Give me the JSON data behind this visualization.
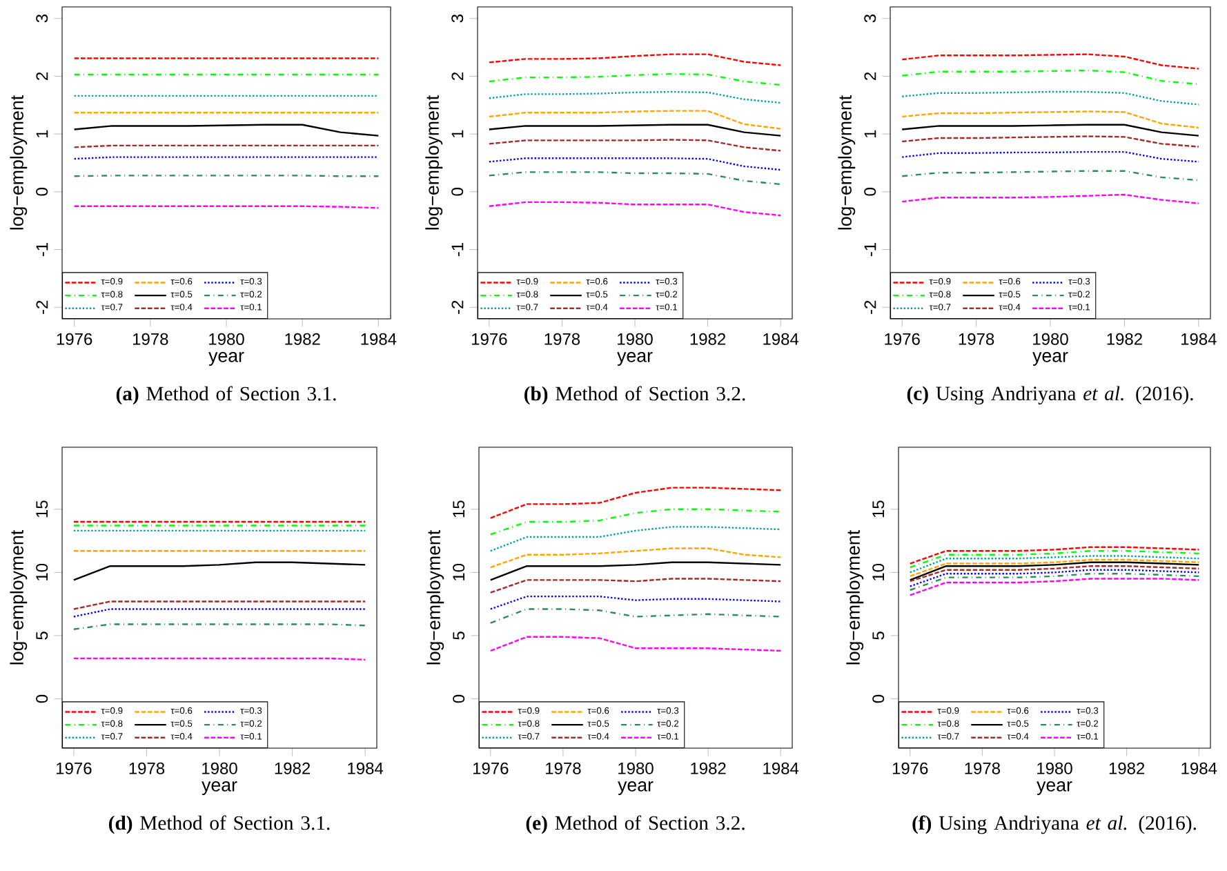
{
  "chart_data": [
    {
      "type": "line",
      "title": "**(a)** Method of Section 3.1.",
      "xlabel": "year",
      "ylabel": "log−employment",
      "x": [
        1976,
        1977,
        1978,
        1979,
        1980,
        1981,
        1982,
        1983,
        1984
      ],
      "xlim": [
        1975.68,
        1984.32
      ],
      "xticks": [
        1976,
        1978,
        1980,
        1982,
        1984
      ],
      "ylim": [
        -2.2,
        3.2
      ],
      "yticks": [
        -2,
        -1,
        0,
        1,
        2,
        3
      ],
      "legend": "bottom left",
      "series": [
        {
          "name": "τ=0.9",
          "color": "#ff0000",
          "line_style": "dashed",
          "values": [
            2.31,
            2.31,
            2.31,
            2.31,
            2.31,
            2.31,
            2.31,
            2.31,
            2.31
          ]
        },
        {
          "name": "τ=0.8",
          "color": "#00ff00",
          "line_style": "dashdot",
          "values": [
            2.03,
            2.03,
            2.03,
            2.03,
            2.03,
            2.03,
            2.03,
            2.03,
            2.03
          ]
        },
        {
          "name": "τ=0.7",
          "color": "#00a0a0",
          "line_style": "dotted",
          "values": [
            1.66,
            1.66,
            1.66,
            1.66,
            1.66,
            1.66,
            1.66,
            1.66,
            1.66
          ]
        },
        {
          "name": "τ=0.6",
          "color": "#ffa500",
          "line_style": "dashed",
          "values": [
            1.37,
            1.37,
            1.37,
            1.37,
            1.37,
            1.37,
            1.37,
            1.37,
            1.37
          ]
        },
        {
          "name": "τ=0.5",
          "color": "#000000",
          "line_style": "solid",
          "values": [
            1.08,
            1.14,
            1.14,
            1.14,
            1.15,
            1.16,
            1.16,
            1.03,
            0.97
          ]
        },
        {
          "name": "τ=0.4",
          "color": "#a52a2a",
          "line_style": "dashed",
          "values": [
            0.77,
            0.8,
            0.8,
            0.8,
            0.8,
            0.8,
            0.8,
            0.8,
            0.8
          ]
        },
        {
          "name": "τ=0.3",
          "color": "#0000ff",
          "line_style": "dotted",
          "values": [
            0.57,
            0.6,
            0.6,
            0.6,
            0.6,
            0.6,
            0.6,
            0.6,
            0.6
          ]
        },
        {
          "name": "τ=0.2",
          "color": "#2e8b57",
          "line_style": "dashdot",
          "values": [
            0.27,
            0.28,
            0.28,
            0.28,
            0.28,
            0.28,
            0.28,
            0.27,
            0.27
          ]
        },
        {
          "name": "τ=0.1",
          "color": "#ff00ff",
          "line_style": "dashed",
          "values": [
            -0.25,
            -0.25,
            -0.25,
            -0.25,
            -0.25,
            -0.25,
            -0.25,
            -0.26,
            -0.28
          ]
        }
      ]
    },
    {
      "type": "line",
      "title": "**(b)** Method of Section 3.2.",
      "xlabel": "year",
      "ylabel": "log−employment",
      "x": [
        1976,
        1977,
        1978,
        1979,
        1980,
        1981,
        1982,
        1983,
        1984
      ],
      "xlim": [
        1975.68,
        1984.32
      ],
      "xticks": [
        1976,
        1978,
        1980,
        1982,
        1984
      ],
      "ylim": [
        -2.2,
        3.2
      ],
      "yticks": [
        -2,
        -1,
        0,
        1,
        2,
        3
      ],
      "legend": "bottom left",
      "series": [
        {
          "name": "τ=0.9",
          "color": "#ff0000",
          "line_style": "dashed",
          "values": [
            2.24,
            2.3,
            2.3,
            2.31,
            2.35,
            2.38,
            2.38,
            2.25,
            2.19
          ]
        },
        {
          "name": "τ=0.8",
          "color": "#00ff00",
          "line_style": "dashdot",
          "values": [
            1.91,
            1.98,
            1.98,
            1.99,
            2.02,
            2.04,
            2.03,
            1.91,
            1.85
          ]
        },
        {
          "name": "τ=0.7",
          "color": "#00a0a0",
          "line_style": "dotted",
          "values": [
            1.62,
            1.69,
            1.69,
            1.7,
            1.72,
            1.73,
            1.72,
            1.6,
            1.54
          ]
        },
        {
          "name": "τ=0.6",
          "color": "#ffa500",
          "line_style": "dashed",
          "values": [
            1.3,
            1.37,
            1.37,
            1.37,
            1.39,
            1.4,
            1.4,
            1.17,
            1.09
          ]
        },
        {
          "name": "τ=0.5",
          "color": "#000000",
          "line_style": "solid",
          "values": [
            1.08,
            1.14,
            1.14,
            1.14,
            1.15,
            1.16,
            1.16,
            1.03,
            0.97
          ]
        },
        {
          "name": "τ=0.4",
          "color": "#a52a2a",
          "line_style": "dashed",
          "values": [
            0.83,
            0.89,
            0.89,
            0.89,
            0.89,
            0.9,
            0.89,
            0.77,
            0.71
          ]
        },
        {
          "name": "τ=0.3",
          "color": "#0000ff",
          "line_style": "dotted",
          "values": [
            0.52,
            0.58,
            0.58,
            0.58,
            0.58,
            0.58,
            0.57,
            0.44,
            0.38
          ]
        },
        {
          "name": "τ=0.2",
          "color": "#2e8b57",
          "line_style": "dashdot",
          "values": [
            0.28,
            0.34,
            0.34,
            0.34,
            0.32,
            0.32,
            0.31,
            0.19,
            0.13
          ]
        },
        {
          "name": "τ=0.1",
          "color": "#ff00ff",
          "line_style": "dashed",
          "values": [
            -0.25,
            -0.18,
            -0.18,
            -0.19,
            -0.22,
            -0.22,
            -0.22,
            -0.35,
            -0.41
          ]
        }
      ]
    },
    {
      "type": "line",
      "title": "**(c)** Using Andriyana *et al.* (2016).",
      "xlabel": "year",
      "ylabel": "log−employment",
      "x": [
        1976,
        1977,
        1978,
        1979,
        1980,
        1981,
        1982,
        1983,
        1984
      ],
      "xlim": [
        1975.68,
        1984.32
      ],
      "xticks": [
        1976,
        1978,
        1980,
        1982,
        1984
      ],
      "ylim": [
        -2.2,
        3.2
      ],
      "yticks": [
        -2,
        -1,
        0,
        1,
        2,
        3
      ],
      "legend": "bottom left",
      "series": [
        {
          "name": "τ=0.9",
          "color": "#ff0000",
          "line_style": "dashed",
          "values": [
            2.29,
            2.36,
            2.36,
            2.36,
            2.37,
            2.38,
            2.34,
            2.19,
            2.13
          ]
        },
        {
          "name": "τ=0.8",
          "color": "#00ff00",
          "line_style": "dashdot",
          "values": [
            2.01,
            2.08,
            2.08,
            2.08,
            2.09,
            2.1,
            2.07,
            1.92,
            1.86
          ]
        },
        {
          "name": "τ=0.7",
          "color": "#00a0a0",
          "line_style": "dotted",
          "values": [
            1.65,
            1.71,
            1.71,
            1.72,
            1.73,
            1.73,
            1.71,
            1.57,
            1.51
          ]
        },
        {
          "name": "τ=0.6",
          "color": "#ffa500",
          "line_style": "dashed",
          "values": [
            1.3,
            1.36,
            1.36,
            1.37,
            1.38,
            1.39,
            1.38,
            1.18,
            1.11
          ]
        },
        {
          "name": "τ=0.5",
          "color": "#000000",
          "line_style": "solid",
          "values": [
            1.08,
            1.14,
            1.14,
            1.14,
            1.15,
            1.16,
            1.16,
            1.03,
            0.97
          ]
        },
        {
          "name": "τ=0.4",
          "color": "#a52a2a",
          "line_style": "dashed",
          "values": [
            0.87,
            0.93,
            0.93,
            0.94,
            0.95,
            0.96,
            0.95,
            0.83,
            0.78
          ]
        },
        {
          "name": "τ=0.3",
          "color": "#0000ff",
          "line_style": "dotted",
          "values": [
            0.6,
            0.67,
            0.67,
            0.68,
            0.68,
            0.69,
            0.69,
            0.57,
            0.52
          ]
        },
        {
          "name": "τ=0.2",
          "color": "#2e8b57",
          "line_style": "dashdot",
          "values": [
            0.27,
            0.33,
            0.33,
            0.34,
            0.35,
            0.36,
            0.36,
            0.25,
            0.2
          ]
        },
        {
          "name": "τ=0.1",
          "color": "#ff00ff",
          "line_style": "dashed",
          "values": [
            -0.17,
            -0.1,
            -0.1,
            -0.1,
            -0.09,
            -0.07,
            -0.05,
            -0.14,
            -0.2
          ]
        }
      ]
    },
    {
      "type": "line",
      "title": "**(d)** Method of Section 3.1.",
      "xlabel": "year",
      "ylabel": "log−employment",
      "x": [
        1976,
        1977,
        1978,
        1979,
        1980,
        1981,
        1982,
        1983,
        1984
      ],
      "xlim": [
        1975.68,
        1984.32
      ],
      "xticks": [
        1976,
        1978,
        1980,
        1982,
        1984
      ],
      "ylim": [
        -3.9,
        19.9
      ],
      "yticks": [
        0,
        5,
        10,
        15
      ],
      "legend": "bottom left",
      "series": [
        {
          "name": "τ=0.9",
          "color": "#ff0000",
          "line_style": "dashed",
          "values": [
            14.0,
            14.0,
            14.0,
            14.0,
            14.0,
            14.0,
            14.0,
            14.0,
            14.0
          ]
        },
        {
          "name": "τ=0.8",
          "color": "#00ff00",
          "line_style": "dashdot",
          "values": [
            13.7,
            13.7,
            13.7,
            13.7,
            13.7,
            13.7,
            13.7,
            13.7,
            13.7
          ]
        },
        {
          "name": "τ=0.7",
          "color": "#00a0a0",
          "line_style": "dotted",
          "values": [
            13.3,
            13.3,
            13.3,
            13.3,
            13.3,
            13.3,
            13.3,
            13.3,
            13.3
          ]
        },
        {
          "name": "τ=0.6",
          "color": "#ffa500",
          "line_style": "dashed",
          "values": [
            11.7,
            11.7,
            11.7,
            11.7,
            11.7,
            11.7,
            11.7,
            11.7,
            11.7
          ]
        },
        {
          "name": "τ=0.5",
          "color": "#000000",
          "line_style": "solid",
          "values": [
            9.4,
            10.5,
            10.5,
            10.5,
            10.6,
            10.8,
            10.8,
            10.7,
            10.6
          ]
        },
        {
          "name": "τ=0.4",
          "color": "#a52a2a",
          "line_style": "dashed",
          "values": [
            7.1,
            7.7,
            7.7,
            7.7,
            7.7,
            7.7,
            7.7,
            7.7,
            7.7
          ]
        },
        {
          "name": "τ=0.3",
          "color": "#0000ff",
          "line_style": "dotted",
          "values": [
            6.5,
            7.1,
            7.1,
            7.1,
            7.1,
            7.1,
            7.1,
            7.1,
            7.1
          ]
        },
        {
          "name": "τ=0.2",
          "color": "#2e8b57",
          "line_style": "dashdot",
          "values": [
            5.5,
            5.9,
            5.9,
            5.9,
            5.9,
            5.9,
            5.9,
            5.9,
            5.8
          ]
        },
        {
          "name": "τ=0.1",
          "color": "#ff00ff",
          "line_style": "dashed",
          "values": [
            3.2,
            3.2,
            3.2,
            3.2,
            3.2,
            3.2,
            3.2,
            3.2,
            3.1
          ]
        }
      ]
    },
    {
      "type": "line",
      "title": "**(e)** Method of Section 3.2.",
      "xlabel": "year",
      "ylabel": "log−employment",
      "x": [
        1976,
        1977,
        1978,
        1979,
        1980,
        1981,
        1982,
        1983,
        1984
      ],
      "xlim": [
        1975.68,
        1984.32
      ],
      "xticks": [
        1976,
        1978,
        1980,
        1982,
        1984
      ],
      "ylim": [
        -3.9,
        19.9
      ],
      "yticks": [
        0,
        5,
        10,
        15
      ],
      "legend": "bottom left",
      "series": [
        {
          "name": "τ=0.9",
          "color": "#ff0000",
          "line_style": "dashed",
          "values": [
            14.3,
            15.4,
            15.4,
            15.5,
            16.3,
            16.7,
            16.7,
            16.6,
            16.5
          ]
        },
        {
          "name": "τ=0.8",
          "color": "#00ff00",
          "line_style": "dashdot",
          "values": [
            13.0,
            14.0,
            14.0,
            14.1,
            14.7,
            15.0,
            15.0,
            14.9,
            14.8
          ]
        },
        {
          "name": "τ=0.7",
          "color": "#00a0a0",
          "line_style": "dotted",
          "values": [
            11.7,
            12.8,
            12.8,
            12.8,
            13.3,
            13.6,
            13.6,
            13.5,
            13.4
          ]
        },
        {
          "name": "τ=0.6",
          "color": "#ffa500",
          "line_style": "dashed",
          "values": [
            10.4,
            11.4,
            11.4,
            11.5,
            11.7,
            11.9,
            11.9,
            11.4,
            11.2
          ]
        },
        {
          "name": "τ=0.5",
          "color": "#000000",
          "line_style": "solid",
          "values": [
            9.4,
            10.5,
            10.5,
            10.5,
            10.6,
            10.8,
            10.8,
            10.7,
            10.6
          ]
        },
        {
          "name": "τ=0.4",
          "color": "#a52a2a",
          "line_style": "dashed",
          "values": [
            8.4,
            9.4,
            9.4,
            9.4,
            9.3,
            9.5,
            9.5,
            9.4,
            9.3
          ]
        },
        {
          "name": "τ=0.3",
          "color": "#0000ff",
          "line_style": "dotted",
          "values": [
            7.1,
            8.1,
            8.1,
            8.1,
            7.8,
            7.9,
            7.9,
            7.8,
            7.7
          ]
        },
        {
          "name": "τ=0.2",
          "color": "#2e8b57",
          "line_style": "dashdot",
          "values": [
            6.0,
            7.1,
            7.1,
            7.0,
            6.5,
            6.6,
            6.7,
            6.6,
            6.5
          ]
        },
        {
          "name": "τ=0.1",
          "color": "#ff00ff",
          "line_style": "dashed",
          "values": [
            3.8,
            4.9,
            4.9,
            4.8,
            4.0,
            4.0,
            4.0,
            3.9,
            3.8
          ]
        }
      ]
    },
    {
      "type": "line",
      "title": "**(f)** Using Andriyana *et al.* (2016).",
      "xlabel": "year",
      "ylabel": "log−employment",
      "x": [
        1976,
        1977,
        1978,
        1979,
        1980,
        1981,
        1982,
        1983,
        1984
      ],
      "xlim": [
        1975.68,
        1984.32
      ],
      "xticks": [
        1976,
        1978,
        1980,
        1982,
        1984
      ],
      "ylim": [
        -3.9,
        19.9
      ],
      "yticks": [
        0,
        5,
        10,
        15
      ],
      "legend": "bottom left",
      "series": [
        {
          "name": "τ=0.9",
          "color": "#ff0000",
          "line_style": "dashed",
          "values": [
            10.7,
            11.7,
            11.7,
            11.7,
            11.8,
            12.0,
            12.0,
            11.9,
            11.8
          ]
        },
        {
          "name": "τ=0.8",
          "color": "#00ff00",
          "line_style": "dashdot",
          "values": [
            10.4,
            11.4,
            11.4,
            11.4,
            11.5,
            11.7,
            11.7,
            11.6,
            11.5
          ]
        },
        {
          "name": "τ=0.7",
          "color": "#00a0a0",
          "line_style": "dotted",
          "values": [
            10.0,
            11.1,
            11.1,
            11.1,
            11.2,
            11.3,
            11.3,
            11.2,
            11.1
          ]
        },
        {
          "name": "τ=0.6",
          "color": "#ffa500",
          "line_style": "dashed",
          "values": [
            9.7,
            10.7,
            10.7,
            10.7,
            10.8,
            11.0,
            11.0,
            10.9,
            10.8
          ]
        },
        {
          "name": "τ=0.5",
          "color": "#000000",
          "line_style": "solid",
          "values": [
            9.4,
            10.5,
            10.5,
            10.5,
            10.6,
            10.8,
            10.8,
            10.7,
            10.6
          ]
        },
        {
          "name": "τ=0.4",
          "color": "#a52a2a",
          "line_style": "dashed",
          "values": [
            9.3,
            10.2,
            10.2,
            10.2,
            10.3,
            10.5,
            10.5,
            10.4,
            10.3
          ]
        },
        {
          "name": "τ=0.3",
          "color": "#0000ff",
          "line_style": "dotted",
          "values": [
            8.9,
            9.9,
            9.9,
            9.9,
            10.0,
            10.2,
            10.2,
            10.1,
            10.0
          ]
        },
        {
          "name": "τ=0.2",
          "color": "#2e8b57",
          "line_style": "dashdot",
          "values": [
            8.6,
            9.6,
            9.6,
            9.6,
            9.7,
            9.9,
            9.9,
            9.8,
            9.7
          ]
        },
        {
          "name": "τ=0.1",
          "color": "#ff00ff",
          "line_style": "dashed",
          "values": [
            8.2,
            9.2,
            9.2,
            9.2,
            9.3,
            9.5,
            9.5,
            9.5,
            9.4
          ]
        }
      ]
    }
  ]
}
